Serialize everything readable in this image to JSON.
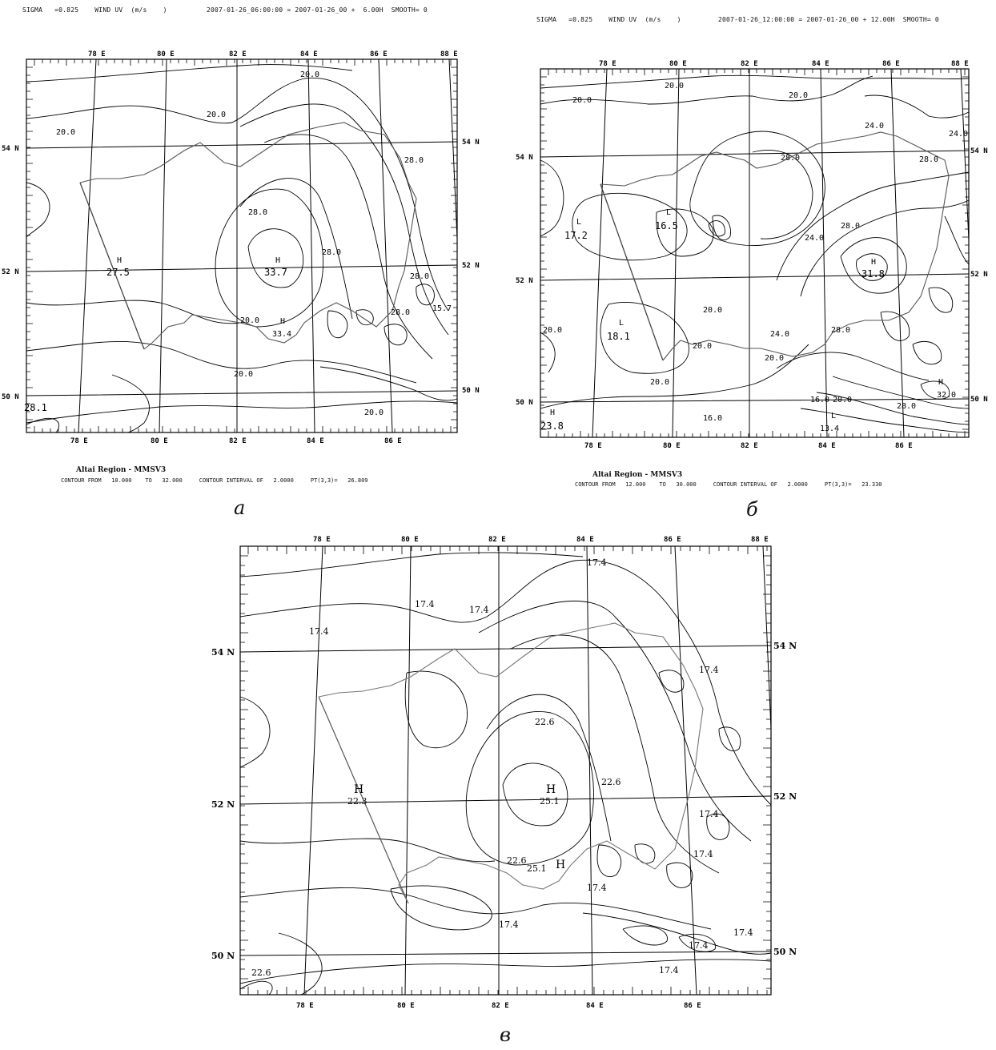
{
  "panels": {
    "a": {
      "header": {
        "left": "SIGMA   =0.825    WIND UV  (m/s    )",
        "right": "2007-01-26_06:00:00 = 2007-01-26_00 +  6.00H  SMOOTH= 0"
      },
      "footer": {
        "title": "Altai Region - MMSV3",
        "contour": "CONTOUR FROM   10.000    TO   32.000     CONTOUR INTERVAL OF   2.0000     PT(3,3)=   26.809"
      },
      "letter": "а",
      "lon_ticks_top": [
        "78 E",
        "80 E",
        "82 E",
        "84 E",
        "86 E",
        "88 E"
      ],
      "lon_ticks_bottom": [
        "78 E",
        "80 E",
        "82 E",
        "84 E",
        "86 E"
      ],
      "lat_ticks_left": [
        "54 N",
        "52 N",
        "50 N"
      ],
      "lat_ticks_right": [
        "54 N",
        "52 N",
        "50 N"
      ],
      "contour_labels": [
        "20.0",
        "20.0",
        "20.0",
        "28.0",
        "28.0",
        "28.0",
        "28.0",
        "20.0",
        "28.0",
        "20.0",
        "20.0"
      ],
      "extrema": [
        {
          "type": "H",
          "value": "27.5"
        },
        {
          "type": "H",
          "value": "33.7"
        },
        {
          "type": "H",
          "value": "33.4"
        },
        {
          "type": "",
          "value": "28.1"
        },
        {
          "type": "",
          "value": "15.7"
        }
      ]
    },
    "b": {
      "header": {
        "left": "SIGMA   =0.825    WIND UV  (m/s    )",
        "right": "2007-01-26_12:00:00 = 2007-01-26_00 + 12.00H  SMOOTH= 0"
      },
      "footer": {
        "title": "Altai Region - MMSV3",
        "contour": "CONTOUR FROM   12.000    TO   30.000     CONTOUR INTERVAL OF   2.0000     PT(3,3)=   23.330"
      },
      "letter": "б",
      "lon_ticks_top": [
        "78 E",
        "80 E",
        "82 E",
        "84 E",
        "86 E",
        "88 E"
      ],
      "lon_ticks_bottom": [
        "78 E",
        "80 E",
        "82 E",
        "84 E",
        "86 E"
      ],
      "lat_ticks_left": [
        "54 N",
        "52 N",
        "50 N"
      ],
      "lat_ticks_right": [
        "54 N",
        "52 N",
        "50 N"
      ],
      "contour_labels": [
        "20.0",
        "20.0",
        "20.0",
        "24.0",
        "24.0",
        "28.0",
        "28.0",
        "28.0",
        "24.0",
        "20.0",
        "20.0",
        "20.0",
        "20.0",
        "20.0",
        "24.0",
        "28.0",
        "16.0",
        "16.0",
        "20.0",
        "28.0"
      ],
      "extrema": [
        {
          "type": "L",
          "value": "17.2"
        },
        {
          "type": "L",
          "value": "16.5"
        },
        {
          "type": "L",
          "value": "18.1"
        },
        {
          "type": "H",
          "value": "31.8"
        },
        {
          "type": "H",
          "value": "23.8"
        },
        {
          "type": "L",
          "value": "13.4"
        },
        {
          "type": "H",
          "value": "32.0"
        }
      ]
    },
    "c": {
      "letter": "в",
      "lon_ticks_top": [
        "78 E",
        "80 E",
        "82 E",
        "84 E",
        "86 E",
        "88 E"
      ],
      "lon_ticks_bottom": [
        "78 E",
        "80 E",
        "82 E",
        "84 E",
        "86 E"
      ],
      "lat_ticks_left": [
        "54 N",
        "52 N",
        "50 N"
      ],
      "lat_ticks_right": [
        "54 N",
        "52 N",
        "50 N"
      ],
      "contour_labels": [
        "17.4",
        "17.4",
        "17.4",
        "17.4",
        "22.6",
        "22.6",
        "17.4",
        "17.4",
        "22.6",
        "25.1",
        "17.4",
        "17.4",
        "17.4",
        "17.4",
        "17.4",
        "17.4"
      ],
      "extrema": [
        {
          "type": "H",
          "value": "22.3"
        },
        {
          "type": "H",
          "value": "25.1"
        },
        {
          "type": "H",
          "value": ""
        },
        {
          "type": "",
          "value": "22.6"
        }
      ]
    }
  }
}
